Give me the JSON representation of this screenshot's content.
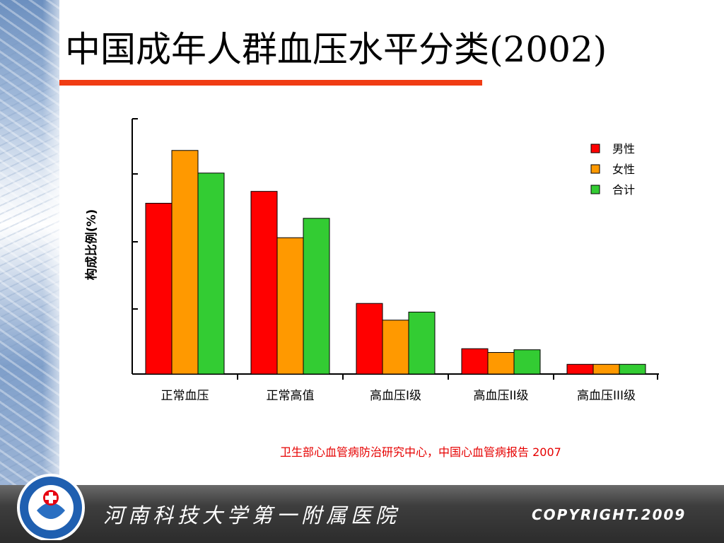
{
  "slide": {
    "title": "中国成年人群血压水平分类(2002)",
    "source_note": "卫生部心血管病防治研究中心，中国心血管病报告 2007",
    "hospital_name": "河南科技大学第一附属医院",
    "copyright": "COPYRIGHT.2009"
  },
  "colors": {
    "accent_line": "#f03c14",
    "male": "#ff0000",
    "female": "#ff9900",
    "total": "#33cc33",
    "source_text": "#e60000"
  },
  "chart_data": {
    "type": "bar",
    "title": "",
    "ylabel": "构成比例(%)",
    "xlabel": "",
    "ylim": [
      0,
      50
    ],
    "categories": [
      "正常血压",
      "正常高值",
      "高血压I级",
      "高血压II级",
      "高血压III级"
    ],
    "series": [
      {
        "name": "男性",
        "color": "#ff0000",
        "values": [
          31.7,
          33.9,
          13.1,
          4.7,
          1.8
        ]
      },
      {
        "name": "女性",
        "color": "#ff9900",
        "values": [
          41.5,
          25.3,
          10.0,
          4.0,
          1.8
        ]
      },
      {
        "name": "合计",
        "color": "#33cc33",
        "values": [
          37.3,
          28.9,
          11.5,
          4.5,
          1.8
        ]
      }
    ],
    "legend_position": "top-right",
    "grid": false
  }
}
